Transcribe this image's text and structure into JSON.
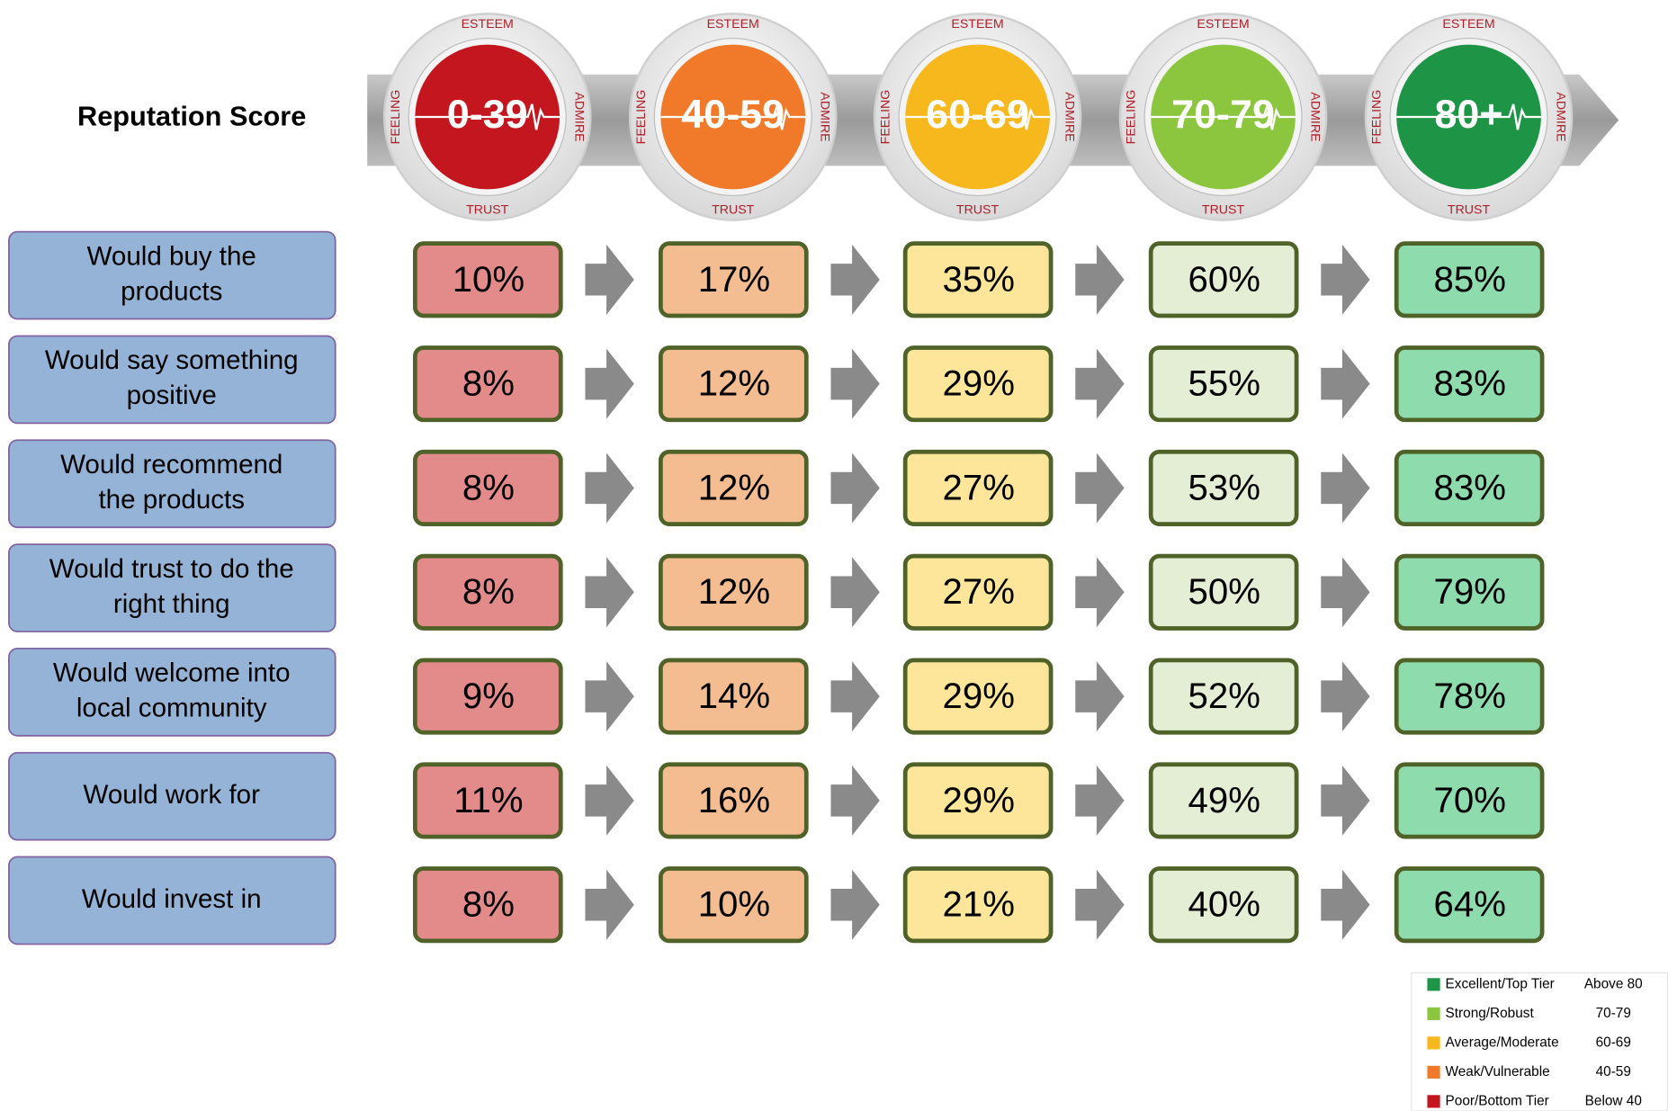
{
  "header": {
    "title": "Reputation Score"
  },
  "ring": {
    "top": "ESTEEM",
    "right": "ADMIRE",
    "bottom": "TRUST",
    "left": "FEELING"
  },
  "tiers": [
    {
      "label": "0-39",
      "color": "#c3161e",
      "cell_color": "#e38b8b"
    },
    {
      "label": "40-59",
      "color": "#f07a2a",
      "cell_color": "#f4bc91"
    },
    {
      "label": "60-69",
      "color": "#f6b81c",
      "cell_color": "#fde59a"
    },
    {
      "label": "70-79",
      "color": "#8cc63e",
      "cell_color": "#e3eed4"
    },
    {
      "label": "80+",
      "color": "#1e9446",
      "cell_color": "#8edcae"
    }
  ],
  "rows": [
    {
      "label": [
        "Would buy the",
        "products"
      ],
      "values": [
        "10%",
        "17%",
        "35%",
        "60%",
        "85%"
      ]
    },
    {
      "label": [
        "Would say something",
        "positive"
      ],
      "values": [
        "8%",
        "12%",
        "29%",
        "55%",
        "83%"
      ]
    },
    {
      "label": [
        "Would recommend",
        "the products"
      ],
      "values": [
        "8%",
        "12%",
        "27%",
        "53%",
        "83%"
      ]
    },
    {
      "label": [
        "Would trust to do the",
        "right thing"
      ],
      "values": [
        "8%",
        "12%",
        "27%",
        "50%",
        "79%"
      ]
    },
    {
      "label": [
        "Would welcome into",
        "local community"
      ],
      "values": [
        "9%",
        "14%",
        "29%",
        "52%",
        "78%"
      ]
    },
    {
      "label": [
        "Would work for"
      ],
      "values": [
        "11%",
        "16%",
        "29%",
        "49%",
        "70%"
      ]
    },
    {
      "label": [
        "Would invest in"
      ],
      "values": [
        "8%",
        "10%",
        "21%",
        "40%",
        "64%"
      ]
    }
  ],
  "legend": [
    {
      "name": "Excellent/Top Tier",
      "range": "Above 80",
      "color": "#1e9446"
    },
    {
      "name": "Strong/Robust",
      "range": "70-79",
      "color": "#8cc63e"
    },
    {
      "name": "Average/Moderate",
      "range": "60-69",
      "color": "#f6b81c"
    },
    {
      "name": "Weak/Vulnerable",
      "range": "40-59",
      "color": "#f07a2a"
    },
    {
      "name": "Poor/Bottom Tier",
      "range": "Below 40",
      "color": "#c3161e"
    }
  ]
}
